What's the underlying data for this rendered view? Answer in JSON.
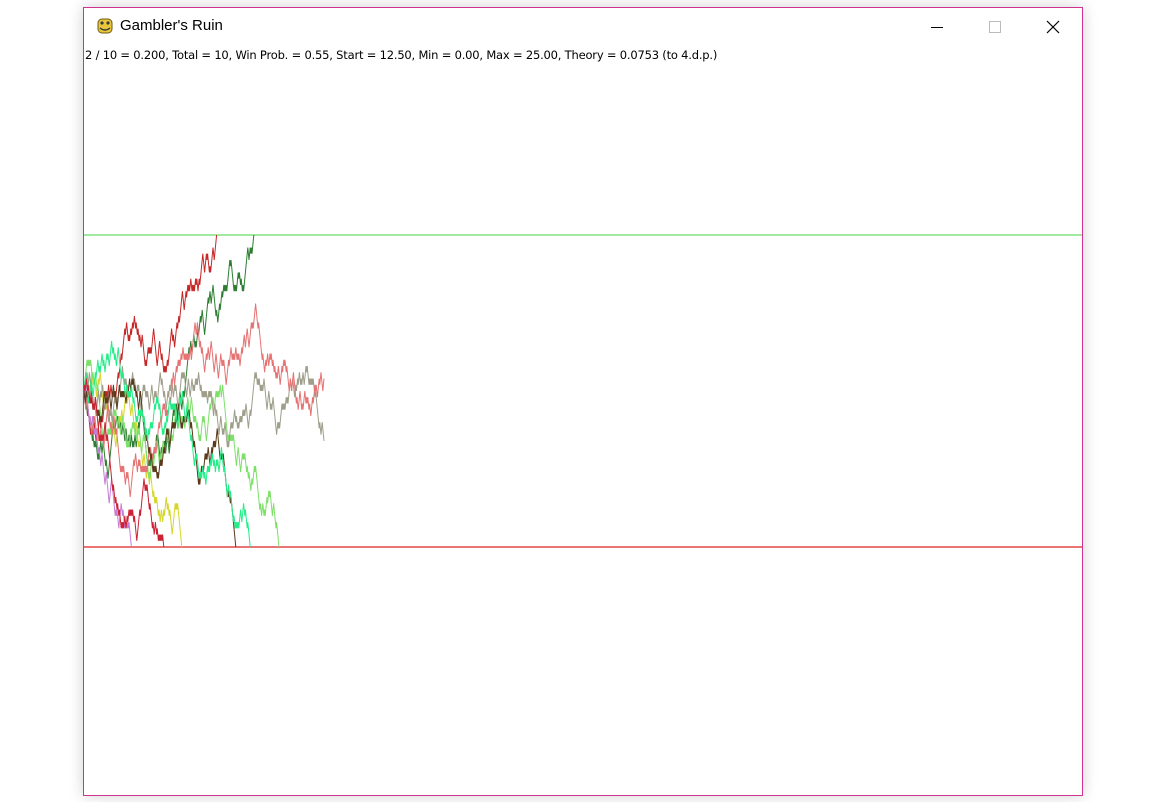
{
  "window": {
    "title": "Gambler's Ruin",
    "buttons": [
      "minimize",
      "maximize",
      "close"
    ]
  },
  "stats": {
    "text": "2 / 10 = 0.200, Total = 10, Win Prob. = 0.55, Start = 12.50, Min = 0.00, Max = 25.00, Theory = 0.0753 (to 4.d.p.)"
  },
  "simulation": {
    "wins": 2,
    "total": 10,
    "ratio": 0.2,
    "win_prob": 0.55,
    "start": 12.5,
    "min": 0.0,
    "max": 25.0,
    "theory": 0.0753,
    "step_size": 0.5,
    "colors": {
      "max_line": "#66dd66",
      "min_line": "#dd2222",
      "walks": [
        "#c62828",
        "#2e7d32",
        "#d6d62a",
        "#7ee06a",
        "#9e9e8a",
        "#e57373",
        "#c77dd8",
        "#5a3a1a",
        "#22ee88",
        "#cc2233"
      ]
    }
  }
}
